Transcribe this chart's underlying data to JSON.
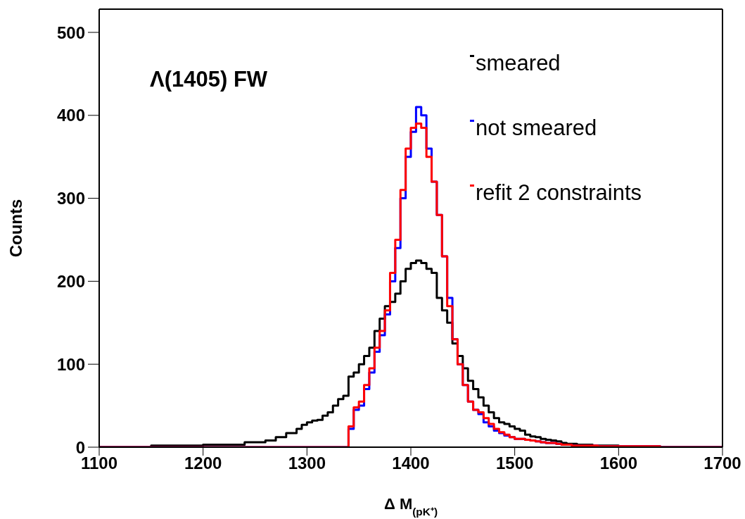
{
  "chart_data": {
    "type": "histogram",
    "xlabel": "Δ M$_{(pK⁺)}$",
    "ylabel": "Counts",
    "annotations": [
      "Λ(1405)  FW"
    ],
    "xlim": [
      1100,
      1700
    ],
    "xticks": [
      1100,
      1200,
      1300,
      1400,
      1500,
      1600,
      1700
    ],
    "ylim": [
      0,
      528
    ],
    "yticks": [
      0,
      100,
      200,
      300,
      400,
      500
    ],
    "legend": "top right",
    "bins": [
      1100,
      1105,
      1110,
      1115,
      1120,
      1125,
      1130,
      1135,
      1140,
      1145,
      1150,
      1155,
      1160,
      1165,
      1170,
      1175,
      1180,
      1185,
      1190,
      1195,
      1200,
      1205,
      1210,
      1215,
      1220,
      1225,
      1230,
      1235,
      1240,
      1245,
      1250,
      1255,
      1260,
      1265,
      1270,
      1275,
      1280,
      1285,
      1290,
      1295,
      1300,
      1305,
      1310,
      1315,
      1320,
      1325,
      1330,
      1335,
      1340,
      1345,
      1350,
      1355,
      1360,
      1365,
      1370,
      1375,
      1380,
      1385,
      1390,
      1395,
      1400,
      1405,
      1410,
      1415,
      1420,
      1425,
      1430,
      1435,
      1440,
      1445,
      1450,
      1455,
      1460,
      1465,
      1470,
      1475,
      1480,
      1485,
      1490,
      1495,
      1500,
      1505,
      1510,
      1515,
      1520,
      1525,
      1530,
      1535,
      1540,
      1545,
      1550,
      1555,
      1560,
      1565,
      1570,
      1575,
      1580,
      1585,
      1590,
      1595,
      1600,
      1605,
      1610,
      1615,
      1620,
      1625,
      1630,
      1635,
      1640,
      1645,
      1650,
      1655,
      1660,
      1665,
      1670,
      1675,
      1680,
      1685,
      1690,
      1695,
      1700
    ],
    "series": [
      {
        "name": "smeared",
        "color": "#000000",
        "values": [
          0,
          0,
          0,
          0,
          0,
          0,
          0,
          0,
          0,
          0,
          2,
          2,
          2,
          2,
          2,
          2,
          2,
          2,
          2,
          2,
          3,
          3,
          3,
          3,
          3,
          3,
          3,
          3,
          6,
          6,
          6,
          6,
          8,
          8,
          12,
          12,
          17,
          17,
          22,
          27,
          30,
          32,
          33,
          38,
          42,
          50,
          58,
          62,
          85,
          90,
          100,
          110,
          120,
          140,
          155,
          170,
          175,
          185,
          200,
          215,
          222,
          225,
          222,
          215,
          210,
          180,
          165,
          150,
          125,
          110,
          95,
          80,
          70,
          60,
          50,
          42,
          35,
          30,
          28,
          25,
          22,
          20,
          15,
          13,
          12,
          10,
          9,
          8,
          7,
          5,
          4,
          4,
          3,
          3,
          3,
          2,
          2,
          2,
          2,
          2,
          1,
          1,
          1,
          1,
          1,
          1,
          1,
          1,
          0,
          0,
          0,
          0,
          0,
          0,
          0,
          0,
          0,
          0,
          0,
          0
        ]
      },
      {
        "name": "not smeared",
        "color": "#0000ff",
        "values": [
          0,
          0,
          0,
          0,
          0,
          0,
          0,
          0,
          0,
          0,
          0,
          0,
          0,
          0,
          0,
          0,
          0,
          0,
          0,
          0,
          0,
          0,
          0,
          0,
          0,
          0,
          0,
          0,
          0,
          0,
          0,
          0,
          0,
          0,
          0,
          0,
          0,
          0,
          0,
          0,
          0,
          0,
          0,
          0,
          0,
          0,
          0,
          0,
          22,
          45,
          50,
          70,
          90,
          115,
          135,
          160,
          200,
          240,
          300,
          350,
          380,
          410,
          400,
          360,
          320,
          280,
          230,
          180,
          130,
          100,
          75,
          55,
          45,
          40,
          30,
          25,
          20,
          17,
          14,
          12,
          10,
          10,
          9,
          8,
          7,
          6,
          5,
          5,
          4,
          3,
          3,
          2,
          2,
          2,
          2,
          2,
          1,
          1,
          1,
          1,
          1,
          1,
          1,
          1,
          1,
          1,
          1,
          1,
          0,
          0,
          0,
          0,
          0,
          0,
          0,
          0,
          0,
          0,
          0,
          0
        ]
      },
      {
        "name": "refit 2 constraints",
        "color": "#ff0000",
        "values": [
          0,
          0,
          0,
          0,
          0,
          0,
          0,
          0,
          0,
          0,
          0,
          0,
          0,
          0,
          0,
          0,
          0,
          0,
          0,
          0,
          0,
          0,
          0,
          0,
          0,
          0,
          0,
          0,
          0,
          0,
          0,
          0,
          0,
          0,
          0,
          0,
          0,
          0,
          0,
          0,
          0,
          0,
          0,
          0,
          0,
          0,
          0,
          0,
          25,
          48,
          55,
          75,
          95,
          120,
          140,
          165,
          210,
          250,
          310,
          360,
          385,
          390,
          385,
          350,
          320,
          280,
          230,
          170,
          130,
          100,
          75,
          55,
          45,
          42,
          35,
          28,
          22,
          18,
          15,
          12,
          10,
          10,
          9,
          8,
          7,
          6,
          5,
          5,
          4,
          3,
          3,
          2,
          2,
          2,
          2,
          2,
          1,
          1,
          1,
          1,
          1,
          1,
          1,
          1,
          1,
          1,
          1,
          1,
          0,
          0,
          0,
          0,
          0,
          0,
          0,
          0,
          0,
          0,
          0,
          0
        ]
      }
    ]
  }
}
